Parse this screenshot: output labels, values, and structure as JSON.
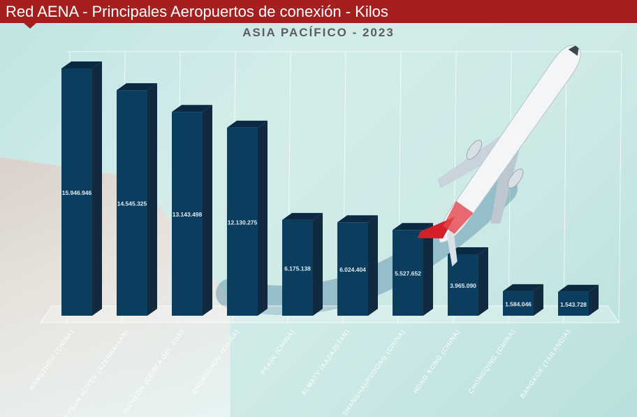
{
  "header": {
    "title": "Red AENA - Principales Aeropuertos de conexión - Kilos",
    "subtitle": "ASIA PACÍFICO - 2023"
  },
  "colors": {
    "header": "#a51f1f",
    "bar_front": "#0b3d5e",
    "bar_side": "#112a40",
    "bar_top": "#0a2a44",
    "background": "#cde9e6"
  },
  "chart_data": {
    "type": "bar",
    "title": "ASIA PACÍFICO - 2023",
    "categories": [
      "HANGZHOU (CHINA)",
      "HEYDAR ALIYEV (AZERBAIYAN)",
      "INCHEON (COREA DEL SUR)",
      "ZHENGZHOU (CHINA)",
      "PEKÍN (CHINA)",
      "ALMATY (KAZAJSTAN)",
      "SHANGHAI/PUDONG (CHINA)",
      "HONG KONG (CHINA)",
      "CHONGQING (CHINA)",
      "BANGKOK (TAILANDIA)"
    ],
    "values": [
      15946946,
      14545325,
      13143498,
      12130275,
      6175138,
      6024404,
      5527652,
      3965090,
      1584046,
      1543728
    ],
    "value_labels": [
      "15.946.946",
      "14.545.325",
      "13.143.498",
      "12.130.275",
      "6.175.138",
      "6.024.404",
      "5.527.652",
      "3.965.090",
      "1.584.046",
      "1.543.728"
    ],
    "ylim": [
      0,
      18000000
    ],
    "grid": true,
    "legend": "none"
  }
}
